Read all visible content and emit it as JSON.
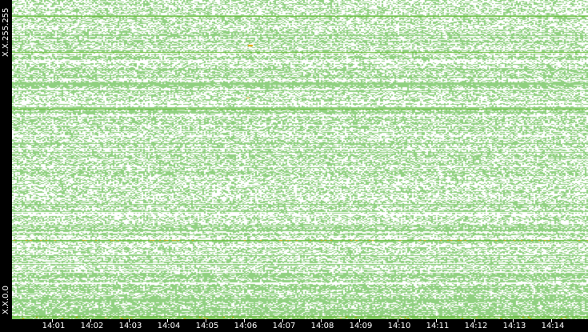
{
  "chart_data": {
    "type": "heatmap",
    "title": "",
    "xlabel": "",
    "ylabel": "",
    "y_tick_labels": [
      "X.X.255.255",
      "X.X.0.0"
    ],
    "x_tick_labels": [
      "14:01",
      "14:02",
      "14:03",
      "14:04",
      "14:05",
      "14:06",
      "14:07",
      "14:08",
      "14:09",
      "14:10",
      "14:11",
      "14:12",
      "14:13",
      "14:14"
    ],
    "colors": {
      "background": "#ffffff",
      "low": "#90d080",
      "medium": "#66bb33",
      "high": "#e0a000",
      "axis": "#000000"
    },
    "legend": "none",
    "grid": false
  }
}
